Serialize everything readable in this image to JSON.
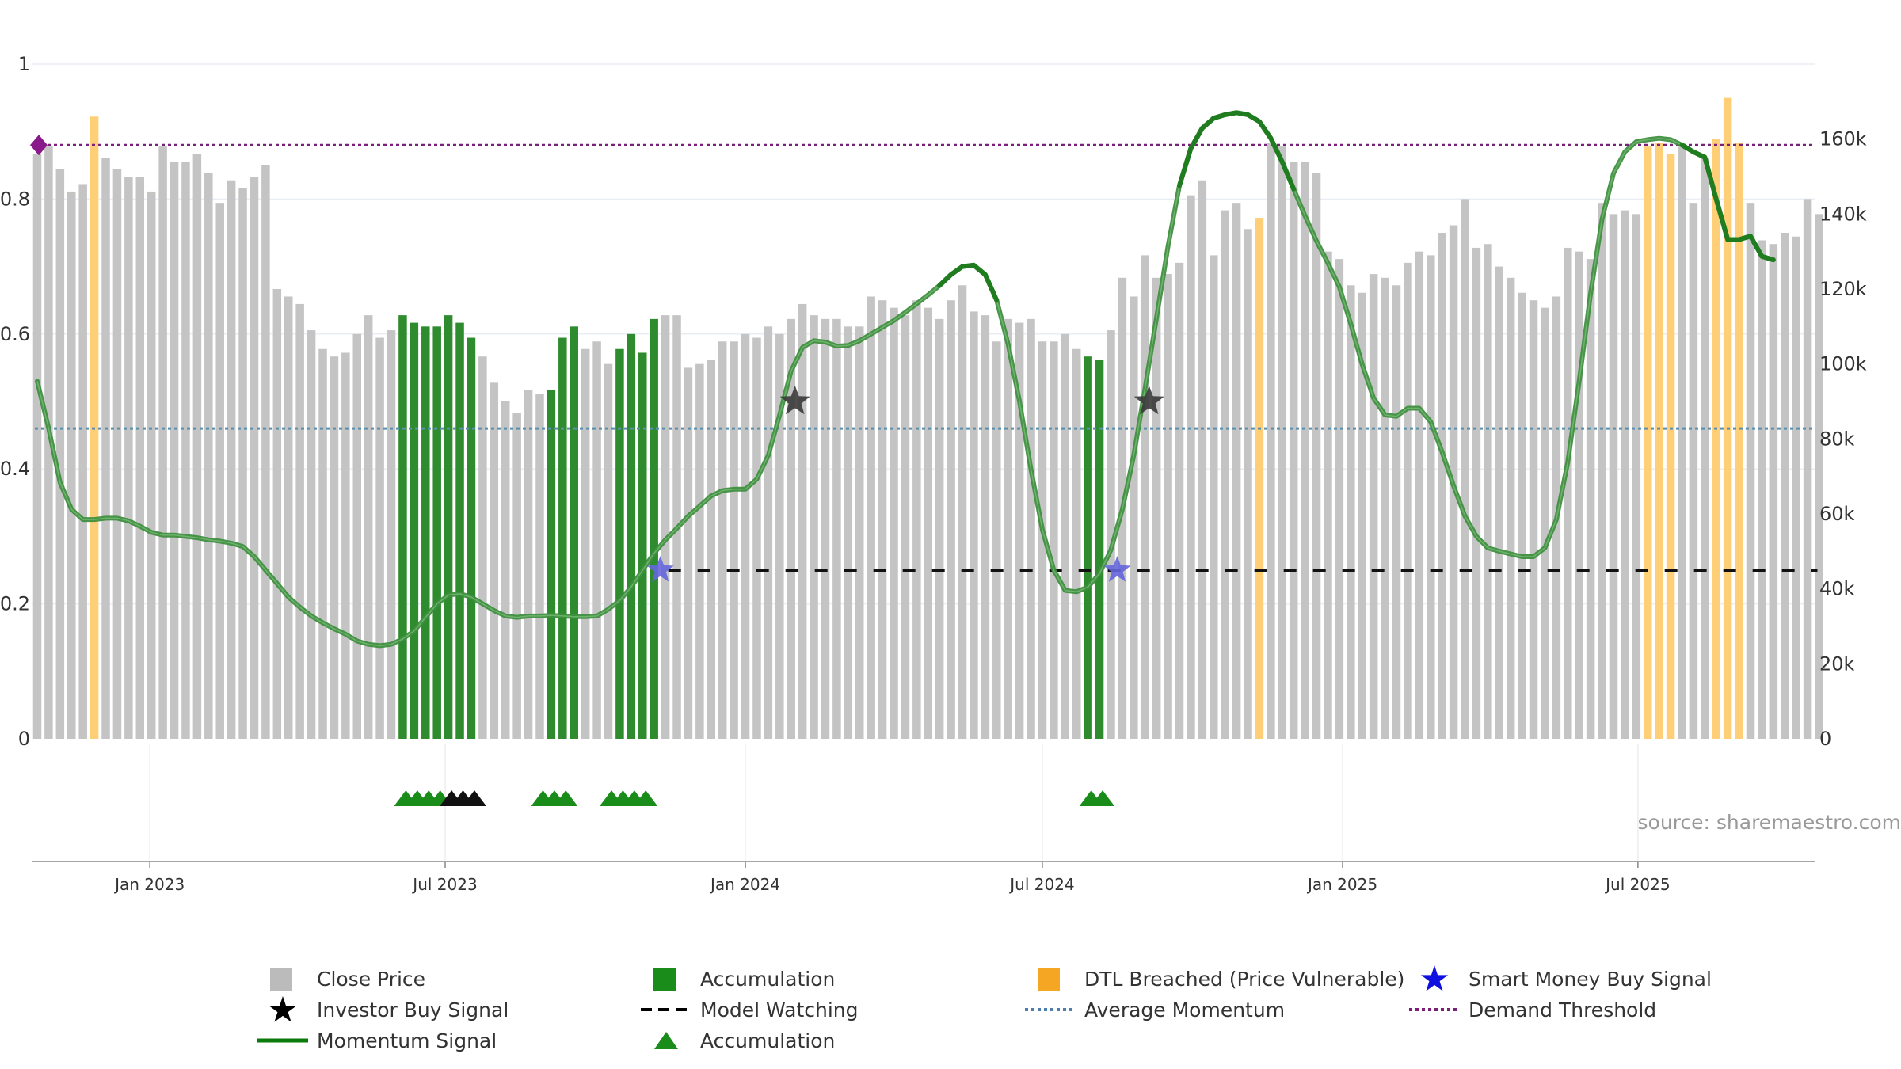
{
  "chart_data": {
    "type": "bar",
    "x_ticks": [
      "Jan 2023",
      "Jul 2023",
      "Jan 2024",
      "Jul 2024",
      "Jan 2025",
      "Jul 2025"
    ],
    "y_left_ticks": [
      "0",
      "0.2",
      "0.4",
      "0.6",
      "0.8",
      "1"
    ],
    "y_right_ticks": [
      "0",
      "20k",
      "40k",
      "60k",
      "80k",
      "100k",
      "120k",
      "140k",
      "160k"
    ],
    "y_left_range": [
      0,
      1
    ],
    "y_right_range": [
      0,
      180000
    ],
    "grid": true,
    "legend_placement": "bottom",
    "colors": {
      "close": "#c4c4c4",
      "accumulation": "#2e8b2e",
      "dtl": "#ffcf77",
      "momentum": "#1f7d1f",
      "average": "#5b8fb0",
      "demand": "#7a1f7a",
      "smart_money": "#2222dd",
      "investor": "#222222"
    },
    "weeks_start": "2022-10-24",
    "close_price": [
      156000,
      158000,
      152000,
      146000,
      148000,
      166000,
      155000,
      152000,
      150000,
      150000,
      146000,
      158000,
      154000,
      154000,
      156000,
      151000,
      143000,
      149000,
      147000,
      150000,
      153000,
      120000,
      118000,
      116000,
      109000,
      104000,
      102000,
      103000,
      108000,
      113000,
      107000,
      109000,
      113000,
      111000,
      110000,
      110000,
      113000,
      111000,
      107000,
      102000,
      95000,
      90000,
      87000,
      93000,
      92000,
      93000,
      107000,
      110000,
      104000,
      106000,
      100000,
      104000,
      108000,
      103000,
      112000,
      113000,
      113000,
      99000,
      100000,
      101000,
      106000,
      106000,
      108000,
      107000,
      110000,
      108000,
      112000,
      116000,
      113000,
      112000,
      112000,
      110000,
      110000,
      118000,
      117000,
      115000,
      113000,
      117000,
      115000,
      112000,
      117000,
      121000,
      114000,
      113000,
      106000,
      112000,
      111000,
      112000,
      106000,
      106000,
      108000,
      104000,
      102000,
      101000,
      109000,
      123000,
      118000,
      129000,
      123000,
      124000,
      127000,
      145000,
      149000,
      129000,
      141000,
      143000,
      136000,
      139000,
      159000,
      158000,
      154000,
      154000,
      151000,
      130000,
      128000,
      121000,
      119000,
      124000,
      123000,
      121000,
      127000,
      130000,
      129000,
      135000,
      137000,
      144000,
      131000,
      132000,
      126000,
      123000,
      119000,
      117000,
      115000,
      118000,
      131000,
      130000,
      128000,
      143000,
      140000,
      141000,
      140000,
      158000,
      159000,
      156000,
      158000,
      143000,
      155000,
      160000,
      171000,
      159000,
      143000,
      133000,
      132000,
      135000,
      134000,
      144000,
      140000
    ],
    "accumulation_weeks": [
      32,
      33,
      34,
      35,
      36,
      37,
      38,
      45,
      46,
      47,
      51,
      52,
      53,
      54,
      92,
      93
    ],
    "dtl_weeks": [
      5,
      107,
      141,
      142,
      143,
      147,
      148,
      149
    ],
    "momentum_signal": [
      0.53,
      0.46,
      0.38,
      0.34,
      0.325,
      0.325,
      0.327,
      0.327,
      0.323,
      0.315,
      0.306,
      0.302,
      0.302,
      0.3,
      0.298,
      0.295,
      0.293,
      0.29,
      0.285,
      0.27,
      0.25,
      0.23,
      0.21,
      0.195,
      0.182,
      0.172,
      0.163,
      0.155,
      0.145,
      0.14,
      0.138,
      0.14,
      0.148,
      0.16,
      0.18,
      0.2,
      0.213,
      0.215,
      0.21,
      0.2,
      0.19,
      0.182,
      0.18,
      0.182,
      0.182,
      0.183,
      0.182,
      0.181,
      0.181,
      0.182,
      0.192,
      0.205,
      0.225,
      0.25,
      0.275,
      0.295,
      0.312,
      0.33,
      0.345,
      0.36,
      0.368,
      0.37,
      0.37,
      0.385,
      0.42,
      0.48,
      0.545,
      0.58,
      0.59,
      0.588,
      0.582,
      0.583,
      0.59,
      0.6,
      0.61,
      0.62,
      0.632,
      0.645,
      0.658,
      0.672,
      0.688,
      0.7,
      0.702,
      0.688,
      0.65,
      0.585,
      0.5,
      0.4,
      0.31,
      0.25,
      0.22,
      0.218,
      0.225,
      0.245,
      0.28,
      0.34,
      0.42,
      0.52,
      0.625,
      0.73,
      0.82,
      0.875,
      0.905,
      0.92,
      0.925,
      0.928,
      0.925,
      0.915,
      0.89,
      0.855,
      0.815,
      0.775,
      0.738,
      0.705,
      0.67,
      0.615,
      0.555,
      0.505,
      0.48,
      0.478,
      0.49,
      0.49,
      0.47,
      0.425,
      0.375,
      0.33,
      0.3,
      0.283,
      0.278,
      0.274,
      0.27,
      0.27,
      0.283,
      0.325,
      0.41,
      0.53,
      0.66,
      0.77,
      0.838,
      0.87,
      0.885,
      0.888,
      0.89,
      0.888,
      0.88,
      0.87,
      0.862,
      0.8,
      0.74,
      0.74,
      0.745,
      0.715,
      0.71
    ],
    "momentum_bright_ranges": [
      [
        79,
        84
      ],
      [
        100,
        110
      ],
      [
        144,
        152
      ]
    ],
    "average_momentum": 0.46,
    "demand_threshold": 0.88,
    "model_watching": {
      "from_week": 54,
      "to_week": 156,
      "value": 0.25
    },
    "smart_money_buy_signals": [
      {
        "week": 54,
        "value": 0.25
      },
      {
        "week": 94,
        "value": 0.25
      }
    ],
    "investor_buy_signals": [
      {
        "week": 66,
        "value": 0.5
      },
      {
        "week": 97,
        "value": 0.5
      }
    ],
    "demand_marker": {
      "week": 0,
      "value": 0.88
    },
    "accumulation_triangles": [
      {
        "week": 32,
        "color": "#1a8c1a"
      },
      {
        "week": 33,
        "color": "#1a8c1a"
      },
      {
        "week": 34,
        "color": "#1a8c1a"
      },
      {
        "week": 35,
        "color": "#1a8c1a"
      },
      {
        "week": 36,
        "color": "#111111"
      },
      {
        "week": 37,
        "color": "#111111"
      },
      {
        "week": 38,
        "color": "#111111"
      },
      {
        "week": 44,
        "color": "#1a8c1a"
      },
      {
        "week": 45,
        "color": "#1a8c1a"
      },
      {
        "week": 46,
        "color": "#1a8c1a"
      },
      {
        "week": 50,
        "color": "#1a8c1a"
      },
      {
        "week": 51,
        "color": "#1a8c1a"
      },
      {
        "week": 52,
        "color": "#1a8c1a"
      },
      {
        "week": 53,
        "color": "#1a8c1a"
      },
      {
        "week": 92,
        "color": "#1a8c1a"
      },
      {
        "week": 93,
        "color": "#1a8c1a"
      }
    ]
  },
  "source": "source: sharemaestro.com",
  "legend": [
    {
      "label": "Close Price",
      "icon": "square-icon",
      "color": "#bbbbbb"
    },
    {
      "label": "Accumulation",
      "icon": "square-icon",
      "color": "#1a8c1a"
    },
    {
      "label": "DTL Breached (Price Vulnerable)",
      "icon": "square-icon",
      "color": "#f5a623"
    },
    {
      "label": "Smart Money Buy Signal",
      "icon": "star-icon",
      "color": "#1010e0"
    },
    {
      "label": "Investor Buy Signal",
      "icon": "star-icon",
      "color": "#000000"
    },
    {
      "label": "Model Watching",
      "icon": "dashed-line-icon",
      "color": "#000000"
    },
    {
      "label": "Average Momentum",
      "icon": "dotted-line-icon",
      "color": "#4a7fb0"
    },
    {
      "label": "Demand Threshold",
      "icon": "dotted-line-icon",
      "color": "#7a1f7a"
    },
    {
      "label": "Momentum Signal",
      "icon": "solid-line-icon",
      "color": "#0a7a0a"
    },
    {
      "label": "Accumulation",
      "icon": "triangle-icon",
      "color": "#1a8c1a"
    }
  ]
}
